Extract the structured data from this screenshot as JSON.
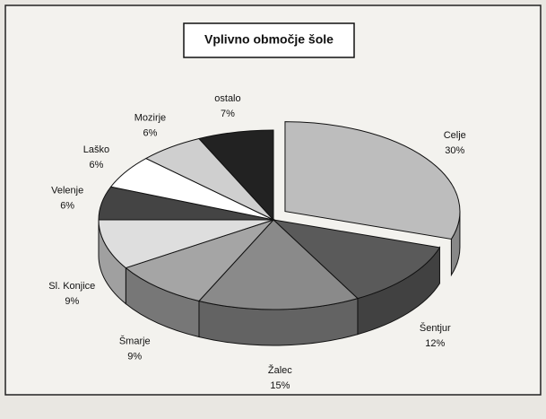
{
  "chart_data": {
    "type": "pie",
    "title": "Vplivno območje šole",
    "categories": [
      "Celje",
      "Šentjur",
      "Žalec",
      "Šmarje",
      "Sl. Konjice",
      "Velenje",
      "Laško",
      "Mozirje",
      "ostalo"
    ],
    "values": [
      30,
      12,
      15,
      9,
      9,
      6,
      6,
      6,
      7
    ],
    "value_labels": [
      "30%",
      "12%",
      "15%",
      "9%",
      "9%",
      "6%",
      "6%",
      "6%",
      "7%"
    ],
    "colors": [
      "#bdbdbd",
      "#5a5a5a",
      "#8a8a8a",
      "#a5a5a5",
      "#dedede",
      "#444444",
      "#ffffff",
      "#cfcfcf",
      "#222222"
    ]
  }
}
